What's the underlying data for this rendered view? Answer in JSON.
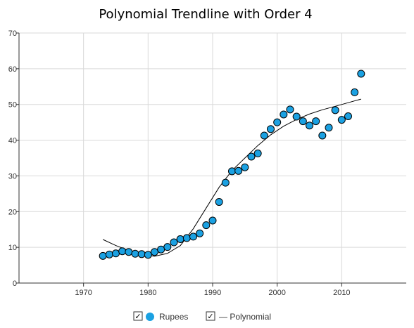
{
  "chart_data": {
    "type": "scatter",
    "title": "Polynomial  Trendline with Order 4",
    "xlabel": "",
    "ylabel": "",
    "xlim": [
      1960,
      2020
    ],
    "ylim": [
      0,
      70
    ],
    "x_ticks": [
      1970,
      1980,
      1990,
      2000,
      2010
    ],
    "y_ticks": [
      0,
      10,
      20,
      30,
      40,
      50,
      60,
      70
    ],
    "grid": true,
    "legend_position": "bottom",
    "series": [
      {
        "name": "Rupees",
        "color": "#1ba1e2",
        "marker": "circle",
        "points": [
          [
            1973,
            7.6
          ],
          [
            1974,
            8.0
          ],
          [
            1975,
            8.3
          ],
          [
            1976,
            8.9
          ],
          [
            1977,
            8.7
          ],
          [
            1978,
            8.2
          ],
          [
            1979,
            8.1
          ],
          [
            1980,
            7.9
          ],
          [
            1981,
            8.7
          ],
          [
            1982,
            9.4
          ],
          [
            1983,
            10.1
          ],
          [
            1984,
            11.4
          ],
          [
            1985,
            12.3
          ],
          [
            1986,
            12.6
          ],
          [
            1987,
            13.0
          ],
          [
            1988,
            13.9
          ],
          [
            1989,
            16.2
          ],
          [
            1990,
            17.5
          ],
          [
            1991,
            22.7
          ],
          [
            1992,
            28.1
          ],
          [
            1993,
            31.3
          ],
          [
            1994,
            31.4
          ],
          [
            1995,
            32.4
          ],
          [
            1996,
            35.4
          ],
          [
            1997,
            36.3
          ],
          [
            1998,
            41.3
          ],
          [
            1999,
            43.1
          ],
          [
            2000,
            45.0
          ],
          [
            2001,
            47.2
          ],
          [
            2002,
            48.6
          ],
          [
            2003,
            46.6
          ],
          [
            2004,
            45.3
          ],
          [
            2005,
            44.1
          ],
          [
            2006,
            45.3
          ],
          [
            2007,
            41.3
          ],
          [
            2008,
            43.5
          ],
          [
            2009,
            48.4
          ],
          [
            2010,
            45.7
          ],
          [
            2011,
            46.7
          ],
          [
            2012,
            53.4
          ],
          [
            2013,
            58.6
          ]
        ]
      },
      {
        "name": "— Polynomial",
        "color": "#000000",
        "marker": "line",
        "points": [
          [
            1973,
            12.2
          ],
          [
            1975,
            10.5
          ],
          [
            1977,
            9.1
          ],
          [
            1979,
            8.0
          ],
          [
            1981,
            7.5
          ],
          [
            1983,
            8.3
          ],
          [
            1985,
            10.5
          ],
          [
            1987,
            15.2
          ],
          [
            1989,
            21.0
          ],
          [
            1991,
            26.8
          ],
          [
            1993,
            31.5
          ],
          [
            1995,
            35.0
          ],
          [
            1997,
            38.5
          ],
          [
            1999,
            41.5
          ],
          [
            2001,
            43.9
          ],
          [
            2003,
            45.8
          ],
          [
            2005,
            47.3
          ],
          [
            2007,
            48.5
          ],
          [
            2009,
            49.5
          ],
          [
            2011,
            50.5
          ],
          [
            2013,
            51.5
          ]
        ]
      }
    ]
  },
  "legend": {
    "items": [
      {
        "label": "Rupees",
        "checked": true,
        "icon": "circle-marker-icon"
      },
      {
        "label": "— Polynomial",
        "checked": true,
        "icon": "none"
      }
    ],
    "check_glyph": "✓"
  }
}
